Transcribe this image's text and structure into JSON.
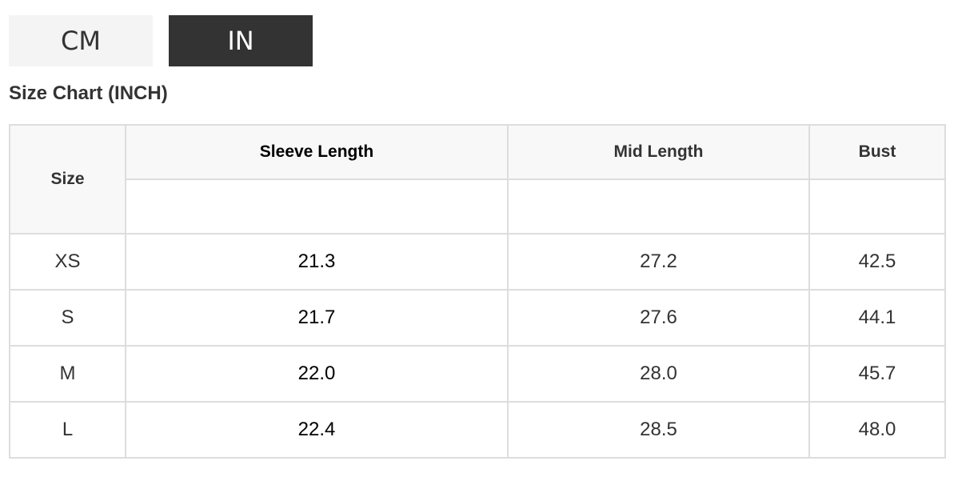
{
  "unit_toggle": {
    "cm_label": "CM",
    "in_label": "IN",
    "selected": "IN"
  },
  "title": "Size Chart (INCH)",
  "table": {
    "headers": [
      "Size",
      "Sleeve Length",
      "Mid Length",
      "Bust"
    ],
    "rows": [
      [
        "XS",
        "21.3",
        "27.2",
        "42.5"
      ],
      [
        "S",
        "21.7",
        "27.6",
        "44.1"
      ],
      [
        "M",
        "22.0",
        "28.0",
        "45.7"
      ],
      [
        "L",
        "22.4",
        "28.5",
        "48.0"
      ]
    ]
  }
}
